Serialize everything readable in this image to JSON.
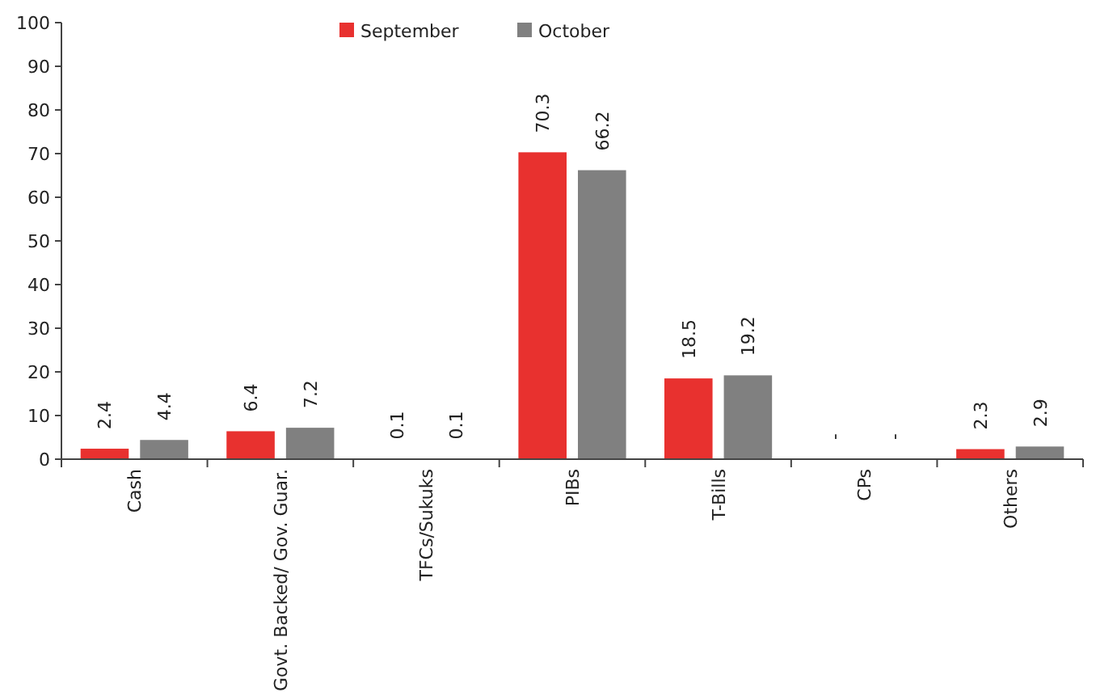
{
  "chart_data": {
    "type": "bar",
    "categories": [
      "Cash",
      "Govt. Backed/ Gov. Guar.",
      "TFCs/Sukuks",
      "PIBs",
      "T-Bills",
      "CPs",
      "Others"
    ],
    "series": [
      {
        "name": "September",
        "color": "#e8312f",
        "values": [
          2.4,
          6.4,
          0.1,
          70.3,
          18.5,
          null,
          2.3
        ],
        "value_labels": [
          "2.4",
          "6.4",
          "0.1",
          "70.3",
          "18.5",
          "-",
          "2.3"
        ]
      },
      {
        "name": "October",
        "color": "#808080",
        "values": [
          4.4,
          7.2,
          0.1,
          66.2,
          19.2,
          null,
          2.9
        ],
        "value_labels": [
          "4.4",
          "7.2",
          "0.1",
          "66.2",
          "19.2",
          "-",
          "2.9"
        ]
      }
    ],
    "ylim": [
      0,
      100
    ],
    "yticks": [
      0,
      10,
      20,
      30,
      40,
      50,
      60,
      70,
      80,
      90,
      100
    ],
    "grid": false,
    "legend": "top"
  }
}
